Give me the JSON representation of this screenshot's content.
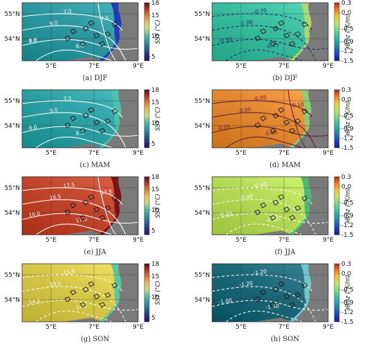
{
  "lat_ticks": [
    "55°N",
    "54°N"
  ],
  "lon_ticks": [
    "5°E",
    "7°E",
    "9°E"
  ],
  "sst_colorbar": {
    "title": "SST (°C)",
    "ticks": [
      "18",
      "15",
      "10",
      "5"
    ],
    "range": [
      4,
      18
    ],
    "colors": [
      "#2a0f6b",
      "#1f3a8a",
      "#2b6a9a",
      "#2f9aa2",
      "#55c0a7",
      "#c6df7d",
      "#e9c15a",
      "#e07b3a",
      "#b8352b",
      "#5e0c12"
    ]
  },
  "grad_colorbar": {
    "title": "∂θ/∂z (°K/m)",
    "ticks": [
      "0.3",
      "0.0",
      "-0.5",
      "-0.9",
      "-1.2",
      "-1.5"
    ],
    "range": [
      -1.5,
      0.3
    ],
    "colors": [
      "#1a1a8c",
      "#2040c0",
      "#1f7aa8",
      "#2aa6a6",
      "#4cc59b",
      "#8dd884",
      "#c6e46a",
      "#f0c23e",
      "#ea7a2a",
      "#a82b1b"
    ]
  },
  "panels": [
    {
      "caption": "(a) DJF",
      "colorbar": "sst",
      "base_color": "#2f9aa2",
      "contour_color": "#ffffff",
      "contour_dash": false,
      "contour_labels": [
        "8.5",
        "9.0",
        "8.0",
        "7.0",
        "7.5",
        "7.0"
      ],
      "coast_color": "#1f2fbf"
    },
    {
      "caption": "(b) DJF",
      "colorbar": "grad",
      "base_color": "#3bbd9f",
      "contour_color": "#1d2b66",
      "contour_dash": true,
      "contour_labels": [
        "-0.50",
        "-1.00",
        "-0.75",
        "-0.70"
      ],
      "coast_color": "#b8d86a"
    },
    {
      "caption": "(c) MAM",
      "colorbar": "sst",
      "base_color": "#2fa2a5",
      "contour_color": "#ffffff",
      "contour_dash": false,
      "contour_labels": [
        "8.0",
        "9.0",
        "8.5",
        "7.5"
      ],
      "coast_color": "#4cc5a8"
    },
    {
      "caption": "(d) MAM",
      "colorbar": "grad",
      "base_color": "#e48a32",
      "contour_color": "#5a1a3d",
      "contour_dash": false,
      "contour_labels": [
        "0.05",
        "0.00",
        "0.00",
        "-0.05",
        "-0.10"
      ],
      "coast_color": "#7fd07c"
    },
    {
      "caption": "(e) JJA",
      "colorbar": "sst",
      "base_color": "#c4482f",
      "contour_color": "#ffffff",
      "contour_dash": false,
      "contour_labels": [
        "16.0",
        "16.5",
        "17.0",
        "17.5",
        "17.5"
      ],
      "coast_color": "#6a1010"
    },
    {
      "caption": "(f) JJA",
      "colorbar": "grad",
      "base_color": "#b7dc58",
      "contour_color": "#ffffff",
      "contour_dash": true,
      "contour_labels": [
        "-0.20",
        "-0.40",
        "-0.30",
        "-0.40"
      ],
      "coast_color": "#3fb37a"
    },
    {
      "caption": "(g) SON",
      "colorbar": "sst",
      "base_color": "#d8c94a",
      "contour_color": "#ffffff",
      "contour_dash": true,
      "contour_labels": [
        "14.5",
        "13.5",
        "14.0",
        "13.5"
      ],
      "coast_color": "#4cc5a8"
    },
    {
      "caption": "(h) SON",
      "colorbar": "grad",
      "base_color": "#1f6a7a",
      "contour_color": "#ffffff",
      "contour_dash": true,
      "contour_labels": [
        "-1.00",
        "-1.20",
        "-1.40",
        "-1.20"
      ],
      "coast_color": "#7ad0d0"
    }
  ]
}
